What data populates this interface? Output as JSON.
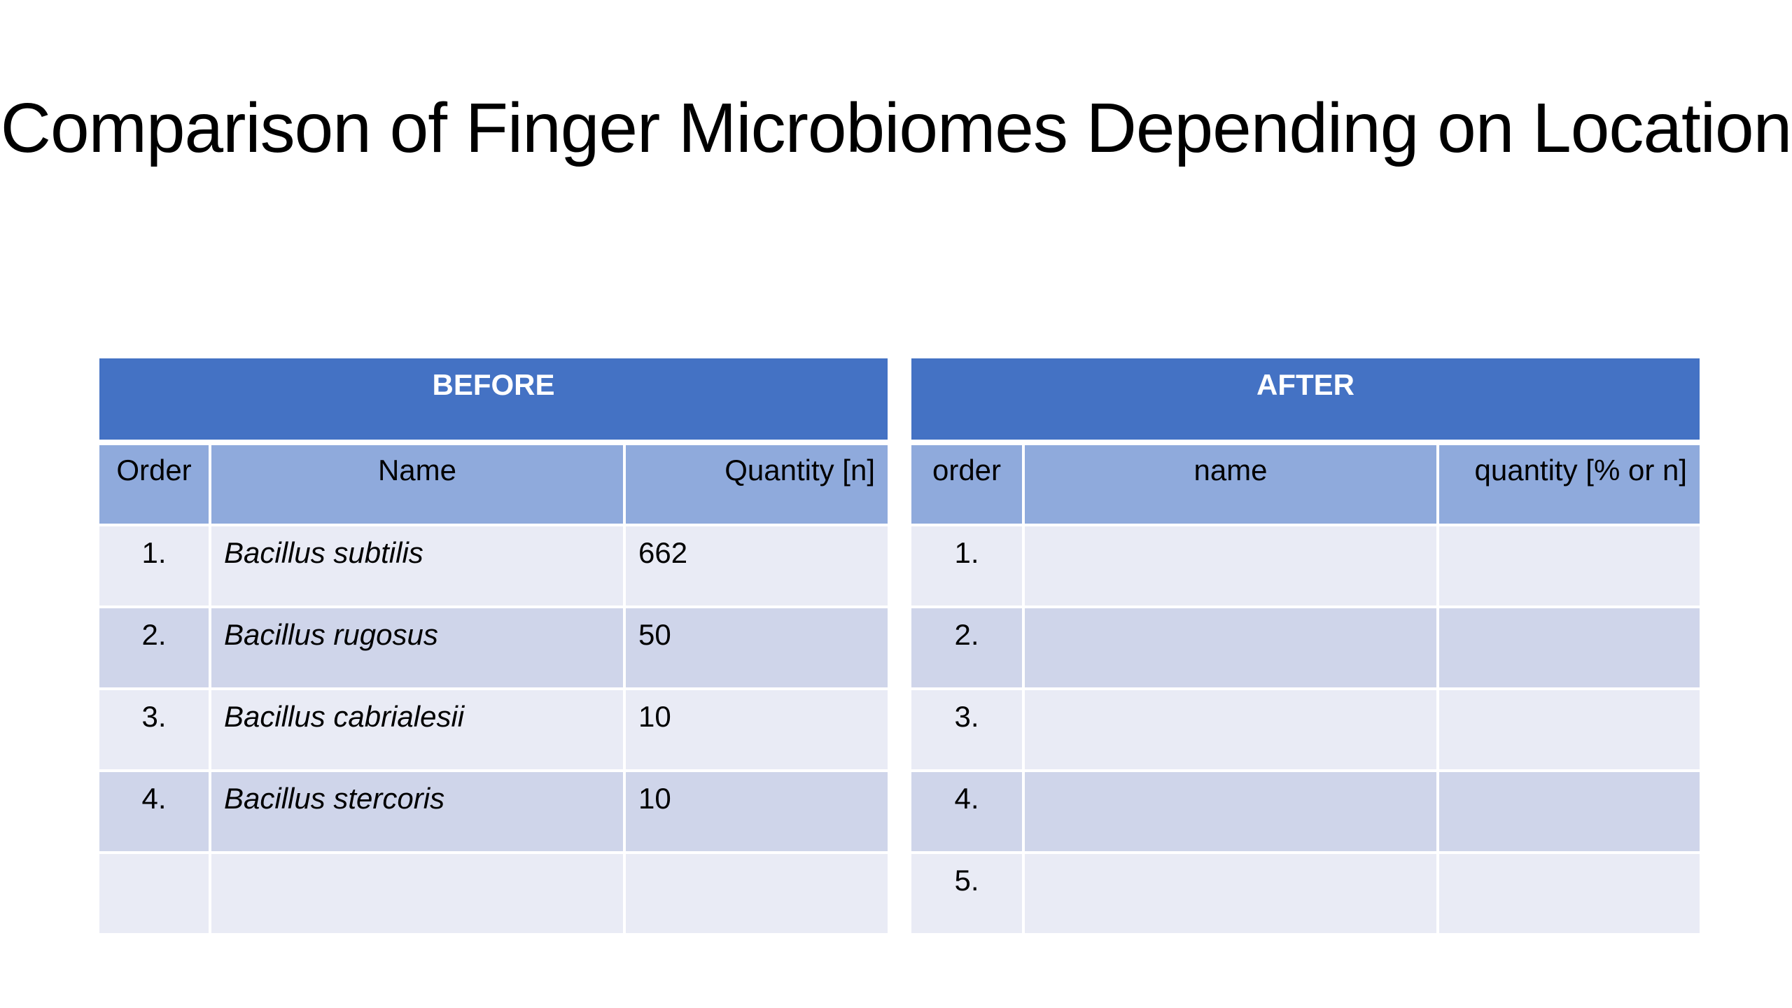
{
  "title": "Comparison of Finger Microbiomes Depending on Location",
  "before": {
    "heading": "BEFORE",
    "columns": [
      "Order",
      "Name",
      "Quantity [n]"
    ],
    "rows": [
      {
        "order": "1.",
        "name": "Bacillus subtilis",
        "quantity": "662"
      },
      {
        "order": "2.",
        "name": "Bacillus rugosus",
        "quantity": "50"
      },
      {
        "order": "3.",
        "name": "Bacillus cabrialesii",
        "quantity": "10"
      },
      {
        "order": "4.",
        "name": "Bacillus stercoris",
        "quantity": "10"
      },
      {
        "order": "",
        "name": "",
        "quantity": ""
      }
    ]
  },
  "after": {
    "heading": "AFTER",
    "columns": [
      "order",
      "name",
      "quantity [% or n]"
    ],
    "rows": [
      {
        "order": "1.",
        "name": "",
        "quantity": ""
      },
      {
        "order": "2.",
        "name": "",
        "quantity": ""
      },
      {
        "order": "3.",
        "name": "",
        "quantity": ""
      },
      {
        "order": "4.",
        "name": "",
        "quantity": ""
      },
      {
        "order": "5.",
        "name": "",
        "quantity": ""
      }
    ]
  },
  "colors": {
    "header_dark": "#4472c4",
    "header_light": "#8faadc",
    "row_light": "#e9ebf5",
    "row_dark": "#cfd5ea"
  }
}
